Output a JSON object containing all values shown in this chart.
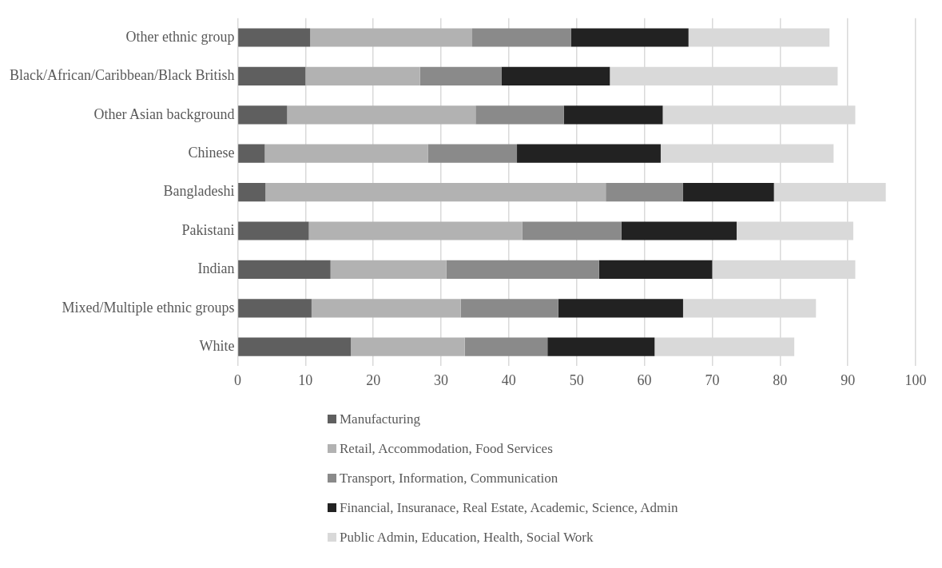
{
  "chart_data": {
    "type": "bar",
    "orientation": "horizontal",
    "stacked": true,
    "categories": [
      "Other ethnic group",
      "Black/African/Caribbean/Black British",
      "Other Asian background",
      "Chinese",
      "Bangladeshi",
      "Pakistani",
      "Indian",
      "Mixed/Multiple ethnic groups",
      "White"
    ],
    "series": [
      {
        "name": "Manufacturing",
        "color": "#5f5f5f",
        "values": [
          10.7,
          10.0,
          7.3,
          4.0,
          4.1,
          10.5,
          13.7,
          10.9,
          16.7
        ]
      },
      {
        "name": "Retail, Accommodation, Food Services",
        "color": "#b2b2b2",
        "values": [
          23.9,
          16.9,
          27.8,
          24.1,
          50.2,
          31.5,
          17.1,
          22.0,
          16.8
        ]
      },
      {
        "name": "Transport, Information, Communication",
        "color": "#8a8a8a",
        "values": [
          14.6,
          12.0,
          13.0,
          13.1,
          11.4,
          14.6,
          22.5,
          14.4,
          12.2
        ]
      },
      {
        "name": "Financial, Insuranace, Real Estate, Academic, Science, Admin",
        "color": "#222222",
        "values": [
          17.3,
          16.0,
          14.6,
          21.2,
          13.4,
          17.0,
          16.7,
          18.4,
          15.8
        ]
      },
      {
        "name": "Public Admin, Education, Health, Social Work",
        "color": "#d9d9d9",
        "values": [
          20.8,
          33.6,
          28.4,
          25.5,
          16.5,
          17.2,
          21.1,
          19.6,
          20.6
        ]
      }
    ],
    "xlim": [
      0,
      100
    ],
    "xticks": [
      0,
      10,
      20,
      30,
      40,
      50,
      60,
      70,
      80,
      90,
      100
    ],
    "grid": "x",
    "legend": "bottom"
  }
}
